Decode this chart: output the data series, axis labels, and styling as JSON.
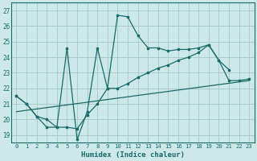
{
  "xlabel": "Humidex (Indice chaleur)",
  "ylabel": "",
  "xlim": [
    -0.5,
    23.5
  ],
  "ylim": [
    18.5,
    27.5
  ],
  "yticks": [
    19,
    20,
    21,
    22,
    23,
    24,
    25,
    26,
    27
  ],
  "xticks": [
    0,
    1,
    2,
    3,
    4,
    5,
    6,
    7,
    8,
    9,
    10,
    11,
    12,
    13,
    14,
    15,
    16,
    17,
    18,
    19,
    20,
    21,
    22,
    23
  ],
  "bg_color": "#cce8e8",
  "grid_color": "#aacccc",
  "line_color": "#1a6b6b",
  "line1_x": [
    0,
    1,
    2,
    3,
    4,
    5,
    6,
    7,
    8,
    9,
    10,
    11,
    12,
    13,
    14,
    15,
    16,
    17,
    18,
    19,
    20,
    21
  ],
  "line1_y": [
    21.5,
    21.0,
    20.2,
    19.5,
    19.5,
    24.6,
    18.7,
    20.5,
    24.6,
    22.0,
    26.7,
    26.6,
    25.4,
    24.6,
    24.6,
    24.4,
    24.5,
    24.5,
    24.6,
    24.8,
    23.8,
    23.2
  ],
  "line2_x": [
    0,
    1,
    2,
    3,
    4,
    5,
    6,
    7,
    8,
    9,
    10,
    11,
    12,
    13,
    14,
    15,
    16,
    17,
    18,
    19,
    20,
    21,
    22,
    23
  ],
  "line2_y": [
    21.5,
    21.0,
    20.2,
    20.0,
    19.5,
    19.5,
    19.4,
    20.3,
    21.0,
    22.0,
    22.0,
    22.3,
    22.7,
    23.0,
    23.3,
    23.5,
    23.8,
    24.0,
    24.3,
    24.8,
    23.8,
    22.5,
    22.5,
    22.6
  ],
  "line3_x": [
    0,
    23
  ],
  "line3_y": [
    20.5,
    22.5
  ]
}
